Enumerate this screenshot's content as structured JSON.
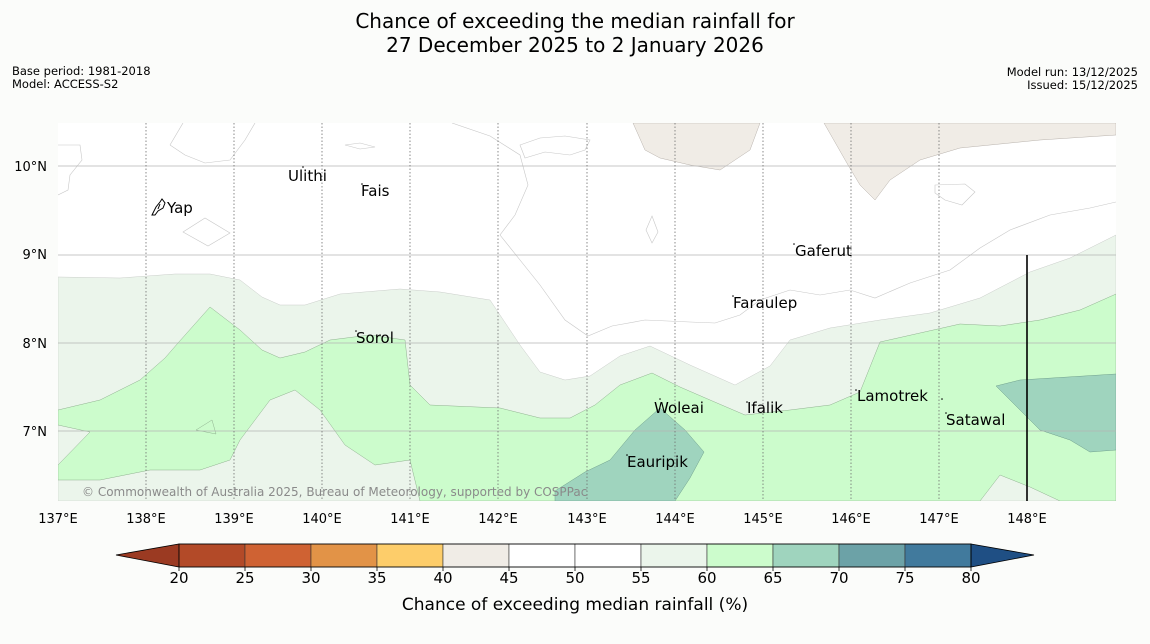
{
  "title": {
    "line1": "Chance of exceeding the median rainfall for",
    "line2": "27 December 2025 to 2 January 2026"
  },
  "meta": {
    "base_period": "Base period: 1981-2018",
    "model": "Model: ACCESS-S2",
    "model_run": "Model run: 13/12/2025",
    "issued": "Issued: 15/12/2025"
  },
  "credit": "© Commonwealth of Australia 2025, Bureau of Meteorology, supported by COSPPac",
  "axes": {
    "lon_labels": [
      "137°E",
      "138°E",
      "139°E",
      "140°E",
      "141°E",
      "142°E",
      "143°E",
      "144°E",
      "145°E",
      "146°E",
      "147°E",
      "148°E"
    ],
    "lat_labels": [
      "10°N",
      "9°N",
      "8°N",
      "7°N"
    ]
  },
  "places": {
    "yap": "Yap",
    "ulithi": "Ulithi",
    "fais": "Fais",
    "sorol": "Sorol",
    "gaferut": "Gaferut",
    "faraulep": "Faraulep",
    "lamotrek": "Lamotrek",
    "woleai": "Woleai",
    "ifalik": "Ifalik",
    "satawal": "Satawal",
    "eauripik": "Eauripik"
  },
  "colorbar": {
    "ticks": [
      "20",
      "25",
      "30",
      "35",
      "40",
      "45",
      "50",
      "55",
      "60",
      "65",
      "70",
      "75",
      "80"
    ],
    "title": "Chance of exceeding median rainfall (%)",
    "colors": [
      "#b34a28",
      "#cf6233",
      "#e29347",
      "#fdcd6a",
      "#f0ece6",
      "#ffffff",
      "#ffffff",
      "#ebf5eb",
      "#ccfccc",
      "#9fd4be",
      "#6ca2a7",
      "#417a9d"
    ],
    "under_color": "#9b3a22",
    "over_color": "#1f4f84"
  },
  "palette": {
    "c40_45": "#f0ece6",
    "c55_60": "#ebf5eb",
    "c60_65": "#ccfccc",
    "c65_70": "#9fd4be",
    "ocean": "#ffffff",
    "page_bg": "#fbfcfa"
  }
}
